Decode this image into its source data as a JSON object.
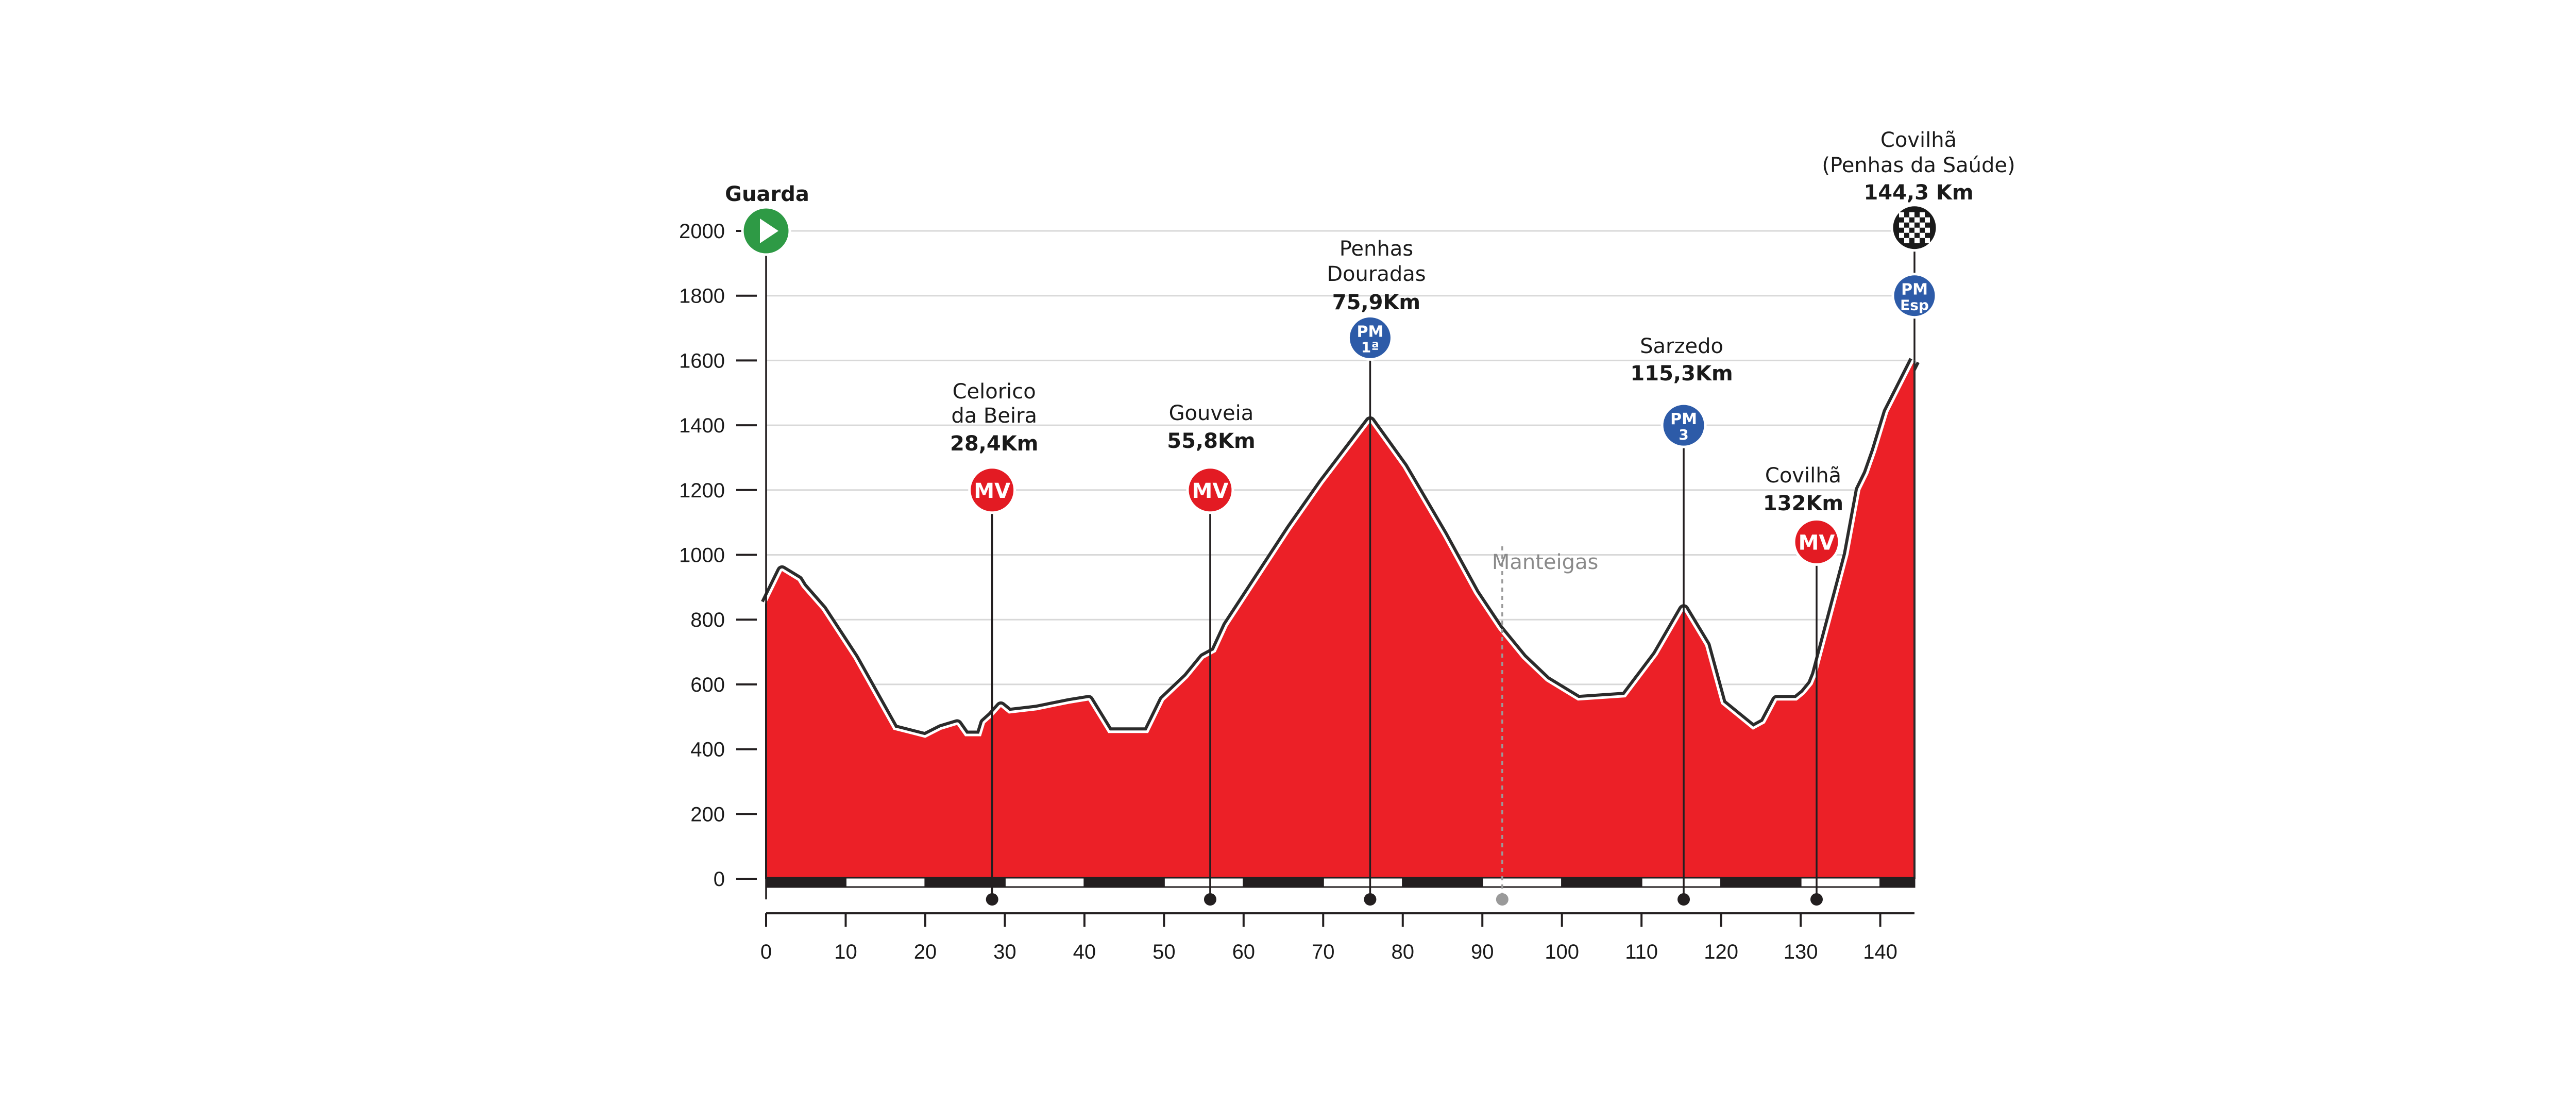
{
  "colors": {
    "profile_fill": "#ec2027",
    "profile_outline": "#2b2b2b",
    "mv_badge": "#e31b23",
    "pm_badge": "#2d5ba8",
    "start_badge": "#2e9a45",
    "finish_badge": "#1a1a1a",
    "grid": "#d8d8d8",
    "axis_dark": "#231f20",
    "intermediate_marker": "#9a9a9a"
  },
  "chart_data": {
    "type": "area",
    "title": "",
    "xlabel": "",
    "ylabel": "",
    "xlim": [
      0,
      144.3
    ],
    "ylim": [
      0,
      2000
    ],
    "x_ticks": [
      0,
      10,
      20,
      30,
      40,
      50,
      60,
      70,
      80,
      90,
      100,
      110,
      120,
      130,
      140
    ],
    "y_ticks": [
      0,
      200,
      400,
      600,
      800,
      1000,
      1200,
      1400,
      1600,
      1800,
      2000
    ],
    "x_tick_labels": [
      "0",
      "10",
      "20",
      "30",
      "40",
      "50",
      "60",
      "70",
      "80",
      "90",
      "100",
      "110",
      "120",
      "130",
      "140"
    ],
    "y_tick_labels": [
      "0",
      "200",
      "400",
      "600",
      "800",
      "1000",
      "1200",
      "1400",
      "1600",
      "1800",
      "2000"
    ],
    "grid": true,
    "series": [
      {
        "x": [
          0,
          2,
          4,
          4.5,
          7,
          11,
          16,
          20,
          22,
          24,
          25,
          27,
          27.5,
          28.4,
          29.5,
          30.5,
          34,
          38,
          40.5,
          43,
          48,
          50,
          53,
          55,
          56.5,
          58,
          62,
          66,
          70,
          75.9,
          80,
          85,
          89,
          92,
          95,
          98,
          102,
          108,
          112,
          115.3,
          118,
          120,
          124,
          125.5,
          127,
          129.5,
          130.5,
          131.5,
          132,
          136,
          137.5,
          138.5,
          139.5,
          141,
          144.3
        ],
        "y": [
          850,
          950,
          920,
          900,
          830,
          680,
          460,
          435,
          460,
          475,
          440,
          440,
          480,
          500,
          530,
          510,
          520,
          540,
          550,
          450,
          450,
          550,
          620,
          680,
          700,
          780,
          930,
          1080,
          1220,
          1410,
          1270,
          1060,
          880,
          770,
          680,
          610,
          550,
          560,
          690,
          830,
          720,
          540,
          460,
          480,
          550,
          550,
          570,
          600,
          630,
          1000,
          1200,
          1250,
          1320,
          1440,
          1600
        ]
      }
    ],
    "sections": [
      "dark",
      "white",
      "dark",
      "white",
      "dark",
      "white",
      "dark",
      "white",
      "dark",
      "white",
      "dark",
      "white",
      "dark",
      "white",
      "dark"
    ]
  },
  "waypoints": {
    "start": {
      "label": "Guarda",
      "km": 0,
      "badge_elev": 2000
    },
    "celorico": {
      "line1": "Celorico",
      "line2": "da Beira",
      "km_label": "28,4Km",
      "km": 28.4,
      "badge": "MV",
      "badge_elev": 1200
    },
    "gouveia": {
      "line1": "Gouveia",
      "km_label": "55,8Km",
      "km": 55.8,
      "badge": "MV",
      "badge_elev": 1200
    },
    "penhas": {
      "line1": "Penhas",
      "line2": "Douradas",
      "km_label": "75,9Km",
      "km": 75.9,
      "badge_top": "PM",
      "badge_bottom": "1ª",
      "badge_elev": 1670
    },
    "manteigas": {
      "label": "Manteigas",
      "km": 92.5
    },
    "sarzedo": {
      "line1": "Sarzedo",
      "km_label": "115,3Km",
      "km": 115.3,
      "badge_top": "PM",
      "badge_bottom": "3",
      "badge_elev": 1400
    },
    "covilha": {
      "line1": "Covilhã",
      "km_label": "132Km",
      "km": 132,
      "badge": "MV",
      "badge_elev": 1040
    },
    "finish": {
      "line1": "Covilhã",
      "line2": "(Penhas da Saúde)",
      "km_label": "144,3 Km",
      "km": 144.3,
      "badge_elev": 2010
    },
    "finish_pm": {
      "badge_top": "PM",
      "badge_bottom": "Esp",
      "badge_elev": 1800
    }
  }
}
